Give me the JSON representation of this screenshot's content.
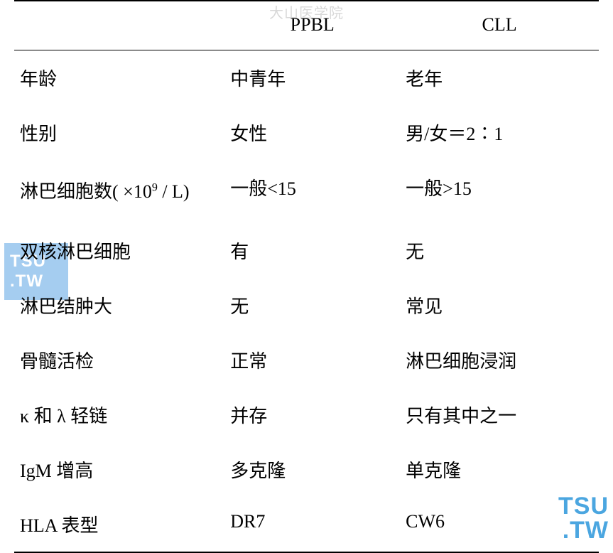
{
  "watermarks": {
    "top_text": "大山医学院",
    "left_line1": "TSU",
    "left_line2": ".TW",
    "right_line1": "TSU",
    "right_line2": ".TW"
  },
  "table": {
    "headers": {
      "col1": "",
      "col2": "PPBL",
      "col3": "CLL"
    },
    "rows": [
      {
        "c1": "年龄",
        "c2": "中青年",
        "c3": "老年"
      },
      {
        "c1": "性别",
        "c2": "女性",
        "c3": "男/女＝2∶1"
      },
      {
        "c1_pre": "淋巴细胞数( ×10",
        "c1_sup": "9",
        "c1_post": " / L)",
        "c2": "一般<15",
        "c3": "一般>15",
        "multiline": true
      },
      {
        "c1": "双核淋巴细胞",
        "c2": "有",
        "c3": "无"
      },
      {
        "c1": "淋巴结肿大",
        "c2": "无",
        "c3": "常见"
      },
      {
        "c1": "骨髓活检",
        "c2": "正常",
        "c3": "淋巴细胞浸润"
      },
      {
        "c1": "κ 和 λ 轻链",
        "c2": "并存",
        "c3": "只有其中之一"
      },
      {
        "c1": "IgM 增高",
        "c2": "多克隆",
        "c3": "单克隆"
      },
      {
        "c1": "HLA 表型",
        "c2": "DR7",
        "c3": "CW6"
      }
    ]
  },
  "colors": {
    "border": "#000000",
    "text": "#000000",
    "background": "#ffffff",
    "watermark_top": "#d8d8d8",
    "watermark_box_bg": "#a5cdf0",
    "watermark_box_text": "#ffffff",
    "watermark_right_text": "#4ba6e0"
  },
  "typography": {
    "cell_fontsize": 26,
    "sup_fontsize": 16,
    "watermark_fontsize": 24
  }
}
